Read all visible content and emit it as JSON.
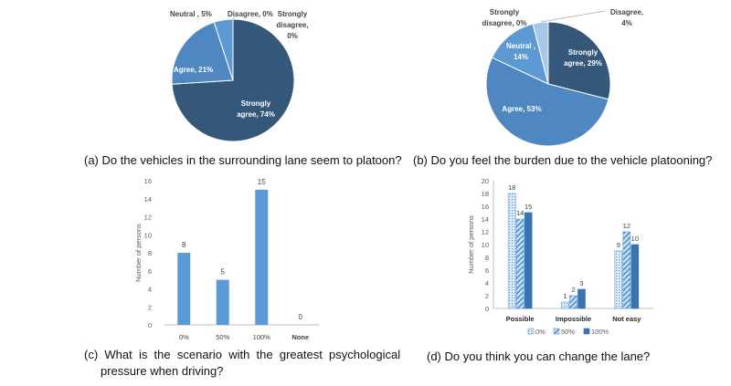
{
  "colors": {
    "strongly_agree": "#35587a",
    "agree": "#4f88c0",
    "neutral": "#5d99d3",
    "disagree": "#a9c7e6",
    "strongly_disagree": "#cfe0f1",
    "bar": "#5b9bd5",
    "series_0": "#5b9bd5",
    "series_50": "#5b9bd5",
    "series_100": "#3a74b0",
    "axis": "#bfbfbf",
    "label_dark": "#444444"
  },
  "captions": {
    "a": "(a) Do the vehicles in the surrounding lane seem to platoon?",
    "b": "(b) Do you feel the burden due to the vehicle platooning?",
    "c_line1": "(c)  What  is  the  scenario  with  the  greatest  psychological",
    "c_line2": "pressure when driving?",
    "d": "(d) Do you think you can change the lane?"
  },
  "chart_data": [
    {
      "id": "a",
      "type": "pie",
      "slices": [
        {
          "name": "Strongly agree",
          "value": 74,
          "label_line1": "Strongly",
          "label_line2": "agree, 74%"
        },
        {
          "name": "Agree",
          "value": 21,
          "label_line1": "Agree, 21%",
          "label_line2": ""
        },
        {
          "name": "Neutral",
          "value": 5,
          "label_line1": "Neutral , 5%",
          "label_line2": ""
        },
        {
          "name": "Disagree",
          "value": 0,
          "label_line1": "Disagree, 0%",
          "label_line2": ""
        },
        {
          "name": "Strongly disagree",
          "value": 0,
          "label_line1": "Strongly",
          "label_line2": "disagree,",
          "label_line3": "0%"
        }
      ]
    },
    {
      "id": "b",
      "type": "pie",
      "slices": [
        {
          "name": "Strongly agree",
          "value": 29,
          "label_line1": "Strongly",
          "label_line2": "agree, 29%"
        },
        {
          "name": "Agree",
          "value": 53,
          "label_line1": "Agree, 53%",
          "label_line2": ""
        },
        {
          "name": "Neutral",
          "value": 14,
          "label_line1": "Neutral ,",
          "label_line2": "14%"
        },
        {
          "name": "Strongly disagree",
          "value": 0,
          "label_line1": "Strongly",
          "label_line2": "disagree, 0%"
        },
        {
          "name": "Disagree",
          "value": 4,
          "label_line1": "Disagree,",
          "label_line2": "4%"
        }
      ]
    },
    {
      "id": "c",
      "type": "bar",
      "categories": [
        "0%",
        "50%",
        "100%",
        "None"
      ],
      "values": [
        8,
        5,
        15,
        0
      ],
      "ylabel": "Number of persons",
      "ylim": [
        0,
        16
      ],
      "yticks": [
        0,
        2,
        4,
        6,
        8,
        10,
        12,
        14,
        16
      ]
    },
    {
      "id": "d",
      "type": "bar",
      "categories": [
        "Possible",
        "Impossible",
        "Not easy"
      ],
      "series": [
        {
          "name": "0%",
          "values": [
            18,
            1,
            9
          ]
        },
        {
          "name": "50%",
          "values": [
            14,
            2,
            12
          ]
        },
        {
          "name": "100%",
          "values": [
            15,
            3,
            10
          ]
        }
      ],
      "ylabel": "Number of persons",
      "ylim": [
        0,
        20
      ],
      "yticks": [
        0,
        2,
        4,
        6,
        8,
        10,
        12,
        14,
        16,
        18,
        20
      ],
      "legend": "bottom"
    }
  ]
}
